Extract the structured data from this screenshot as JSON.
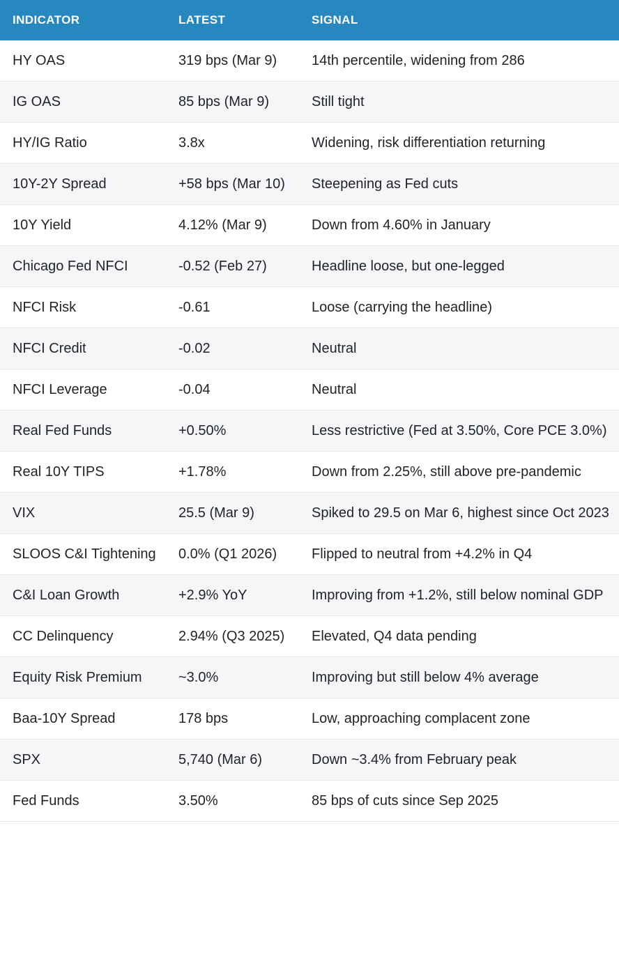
{
  "table": {
    "headers": [
      "INDICATOR",
      "LATEST",
      "SIGNAL"
    ],
    "rows": [
      [
        "HY OAS",
        "319 bps (Mar 9)",
        "14th percentile, widening from 286"
      ],
      [
        "IG OAS",
        "85 bps (Mar 9)",
        "Still tight"
      ],
      [
        "HY/IG Ratio",
        "3.8x",
        "Widening, risk differentiation returning"
      ],
      [
        "10Y-2Y Spread",
        "+58 bps (Mar 10)",
        "Steepening as Fed cuts"
      ],
      [
        "10Y Yield",
        "4.12% (Mar 9)",
        "Down from 4.60% in January"
      ],
      [
        "Chicago Fed NFCI",
        "-0.52 (Feb 27)",
        "Headline loose, but one-legged"
      ],
      [
        "NFCI Risk",
        "-0.61",
        "Loose (carrying the headline)"
      ],
      [
        "NFCI Credit",
        "-0.02",
        "Neutral"
      ],
      [
        "NFCI Leverage",
        "-0.04",
        "Neutral"
      ],
      [
        "Real Fed Funds",
        "+0.50%",
        "Less restrictive (Fed at 3.50%, Core PCE 3.0%)"
      ],
      [
        "Real 10Y TIPS",
        "+1.78%",
        "Down from 2.25%, still above pre-pandemic"
      ],
      [
        "VIX",
        "25.5 (Mar 9)",
        "Spiked to 29.5 on Mar 6, highest since Oct 2023"
      ],
      [
        "SLOOS C&I Tightening",
        "0.0% (Q1 2026)",
        "Flipped to neutral from +4.2% in Q4"
      ],
      [
        "C&I Loan Growth",
        "+2.9% YoY",
        "Improving from +1.2%, still below nominal GDP"
      ],
      [
        "CC Delinquency",
        "2.94% (Q3 2025)",
        "Elevated, Q4 data pending"
      ],
      [
        "Equity Risk Premium",
        "~3.0%",
        "Improving but still below 4% average"
      ],
      [
        "Baa-10Y Spread",
        "178 bps",
        "Low, approaching complacent zone"
      ],
      [
        "SPX",
        "5,740 (Mar 6)",
        "Down ~3.4% from February peak"
      ],
      [
        "Fed Funds",
        "3.50%",
        "85 bps of cuts since Sep 2025"
      ]
    ]
  },
  "colors": {
    "header_bg": "#2688bf",
    "header_text": "#ffffff",
    "stripe": "#f5f6f8",
    "border": "#e3e6ea"
  }
}
